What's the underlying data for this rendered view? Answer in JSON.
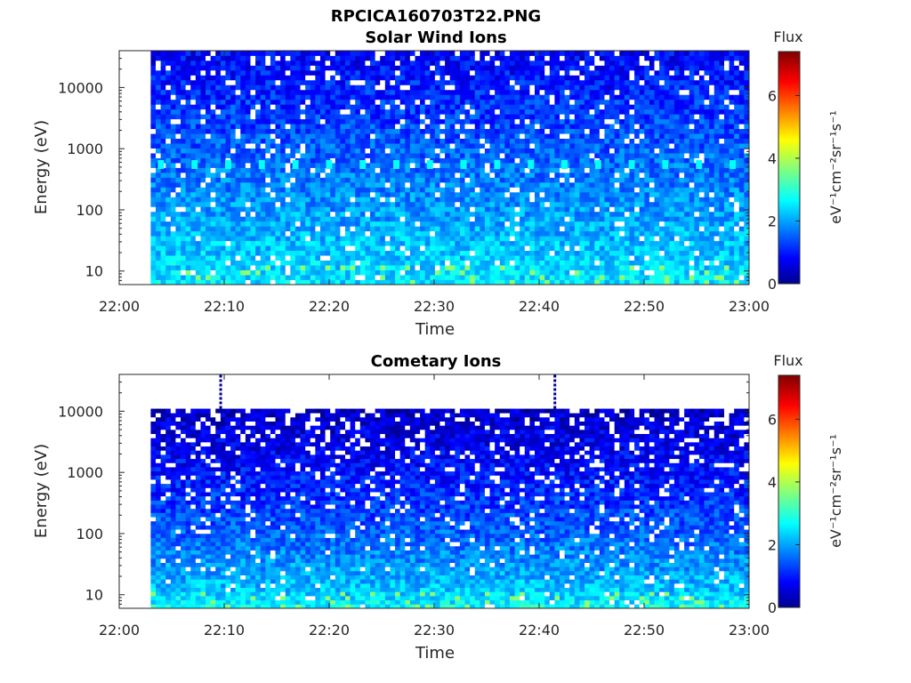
{
  "figure": {
    "title": "RPCICA160703T22.PNG"
  },
  "chart_data": [
    {
      "type": "heatmap",
      "title": "Solar Wind Ions",
      "xlabel": "Time",
      "ylabel": "Energy (eV)",
      "x_ticks": [
        "22:00",
        "22:10",
        "22:20",
        "22:30",
        "22:40",
        "22:50",
        "23:00"
      ],
      "x_range": [
        "22:00",
        "23:00"
      ],
      "data_start": "22:03",
      "y_scale": "log",
      "y_range": [
        6,
        40000
      ],
      "y_ticks": [
        10,
        100,
        1000,
        10000
      ],
      "y_tick_labels": [
        "10",
        "100",
        "1000",
        "10000"
      ],
      "colorbar": {
        "title": "Flux",
        "label": "eV⁻¹cm⁻²sr⁻¹s⁻¹",
        "range": [
          0,
          7.4
        ],
        "ticks": [
          0,
          2,
          4,
          6
        ],
        "tick_labels": [
          "0",
          "2",
          "4",
          "6"
        ],
        "colormap": "jet"
      },
      "features": {
        "background_level": "high-energy counts 0.5-1.5, low-energy (<100 eV) counts 2-3",
        "periodic_band_energy_eV": 550,
        "periodic_band_value": 2.8
      }
    },
    {
      "type": "heatmap",
      "title": "Cometary Ions",
      "xlabel": "Time",
      "ylabel": "Energy (eV)",
      "x_ticks": [
        "22:00",
        "22:10",
        "22:20",
        "22:30",
        "22:40",
        "22:50",
        "23:00"
      ],
      "x_range": [
        "22:00",
        "23:00"
      ],
      "data_start": "22:03",
      "data_top_energy_eV": 11000,
      "y_scale": "log",
      "y_range": [
        6,
        40000
      ],
      "y_ticks": [
        10,
        100,
        1000,
        10000
      ],
      "y_tick_labels": [
        "10",
        "100",
        "1000",
        "10000"
      ],
      "colorbar": {
        "title": "Flux",
        "label": "eV⁻¹cm⁻²sr⁻¹s⁻¹",
        "range": [
          0,
          7.4
        ],
        "ticks": [
          0,
          2,
          4,
          6
        ],
        "tick_labels": [
          "0",
          "2",
          "4",
          "6"
        ],
        "colormap": "jet"
      },
      "features": {
        "background_level": "high-energy counts ~0.3-1, low-energy (<100 eV) counts 2-3.5",
        "spikes_times": [
          "22:09:40",
          "22:41:30"
        ],
        "spike_energy_range_eV": [
          11000,
          40000
        ]
      }
    }
  ]
}
